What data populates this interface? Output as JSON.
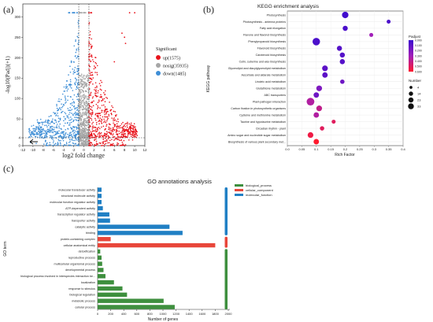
{
  "panels": {
    "a": "(a)",
    "b": "(b)",
    "c": "(c)"
  },
  "chart_data": [
    {
      "type": "scatter",
      "xlabel": "log2 fold change",
      "ylabel": "-log10(Padj)(+1)",
      "xlim": [
        -12,
        12
      ],
      "ylim": [
        0,
        320
      ],
      "x_ticks": [
        -12,
        -10,
        -8,
        -6,
        -4,
        -2,
        0,
        2,
        4,
        6,
        8,
        10,
        12
      ],
      "y_ticks": [
        0,
        4,
        50,
        100,
        150,
        200,
        250,
        300
      ],
      "threshold_lines": {
        "x": [
          -1,
          1
        ],
        "y": 4
      },
      "legend": {
        "title": "Significant",
        "position": "right",
        "entries": [
          {
            "label": "up(1575)",
            "color": "#e8141c"
          },
          {
            "label": "nosig(35935)",
            "color": "#a6a6a6"
          },
          {
            "label": "down(1485)",
            "color": "#3e8ed6"
          }
        ]
      },
      "series": [
        {
          "name": "up(1575)",
          "count": 1575
        },
        {
          "name": "nosig(35935)",
          "count": 35935
        },
        {
          "name": "down(1485)",
          "count": 1485
        }
      ]
    },
    {
      "type": "scatter",
      "title": "KEGG enrichment analysis",
      "xlabel": "Rich Factor",
      "ylabel": "KEGG pathway",
      "xlim": [
        0.0,
        0.4
      ],
      "x_ticks": [
        "0.0",
        "0.05",
        "0.1",
        "0.15",
        "0.2",
        "0.25",
        "0.3",
        "0.35",
        "0.4"
      ],
      "legend": {
        "padj_title": "Padjust",
        "padj_ticks": [
          "0.000",
          "0.100",
          "0.200",
          "0.300",
          "0.400",
          "0.500",
          "0.600"
        ],
        "number_title": "Number",
        "number_ticks": [
          4,
          14,
          23,
          33
        ],
        "position": "right"
      },
      "categories": [
        "Photosynthesis",
        "Photosynthesis - antenna proteins",
        "Fatty acid elongation",
        "Flavone and flavonol biosynthesis",
        "Phenylpropanoid biosynthesis",
        "Flavonoid biosynthesis",
        "Carotenoid biosynthesis",
        "Cutin, suberine and wax biosynthesis",
        "Glycerolipid and diacylglycerolipid metabolism",
        "Ascorbate and aldarate metabolism",
        "Linoleic acid metabolism",
        "Glutathione metabolism",
        "ABC transporters",
        "Plant-pathogen interaction",
        "Carbon fixation in photosynthetic organisms",
        "Cysteine and methionine metabolism",
        "Taurine and hypotaurine metabolism",
        "Circadian rhythm - plant",
        "Amino sugar and nucleotide sugar metabolism",
        "Biosynthesis of various plant secondary met..."
      ],
      "rich_factor": [
        0.2,
        0.35,
        0.2,
        0.29,
        0.1,
        0.18,
        0.19,
        0.19,
        0.13,
        0.13,
        0.19,
        0.11,
        0.1,
        0.08,
        0.11,
        0.1,
        0.16,
        0.12,
        0.08,
        0.1
      ],
      "number": [
        20,
        4,
        10,
        4,
        30,
        10,
        10,
        10,
        14,
        12,
        6,
        14,
        12,
        32,
        14,
        12,
        4,
        6,
        14,
        12
      ],
      "padjust": [
        0.02,
        0.05,
        0.05,
        0.3,
        0.05,
        0.08,
        0.08,
        0.08,
        0.1,
        0.1,
        0.15,
        0.2,
        0.15,
        0.35,
        0.4,
        0.35,
        0.5,
        0.5,
        0.55,
        0.6
      ]
    },
    {
      "type": "bar",
      "title": "GO annotations analysis",
      "xlabel": "Number of genes",
      "ylabel": "GO term",
      "xlim": [
        0,
        2000
      ],
      "x_ticks": [
        0,
        200,
        400,
        600,
        800,
        1000,
        1200,
        1400,
        1600,
        1800,
        2000
      ],
      "legend": {
        "position": "top-right",
        "entries": [
          {
            "label": "biological_process",
            "color": "#3e8f3e"
          },
          {
            "label": "cellular_component",
            "color": "#e8463a"
          },
          {
            "label": "molecular_function",
            "color": "#1f7fc4"
          }
        ]
      },
      "categories": [
        "molecular transducer activity",
        "structural molecule activity",
        "molecular function regulator activity",
        "ATP-dependent activity",
        "transcription regulator activity",
        "transporter activity",
        "catalytic activity",
        "binding",
        "protein-containing complex",
        "cellular anatomical entity",
        "detoxification",
        "reproductive process",
        "multicellular organismal process",
        "developmental process",
        "biological process involved in interspecies interaction be...",
        "localization",
        "response to stimulus",
        "biological regulation",
        "metabolic process",
        "cellular process"
      ],
      "values": [
        60,
        60,
        60,
        80,
        180,
        190,
        1100,
        1300,
        200,
        1800,
        40,
        60,
        70,
        90,
        120,
        250,
        380,
        450,
        1010,
        1180
      ],
      "groups": [
        "molecular_function",
        "molecular_function",
        "molecular_function",
        "molecular_function",
        "molecular_function",
        "molecular_function",
        "molecular_function",
        "molecular_function",
        "cellular_component",
        "cellular_component",
        "biological_process",
        "biological_process",
        "biological_process",
        "biological_process",
        "biological_process",
        "biological_process",
        "biological_process",
        "biological_process",
        "biological_process",
        "biological_process"
      ]
    }
  ]
}
